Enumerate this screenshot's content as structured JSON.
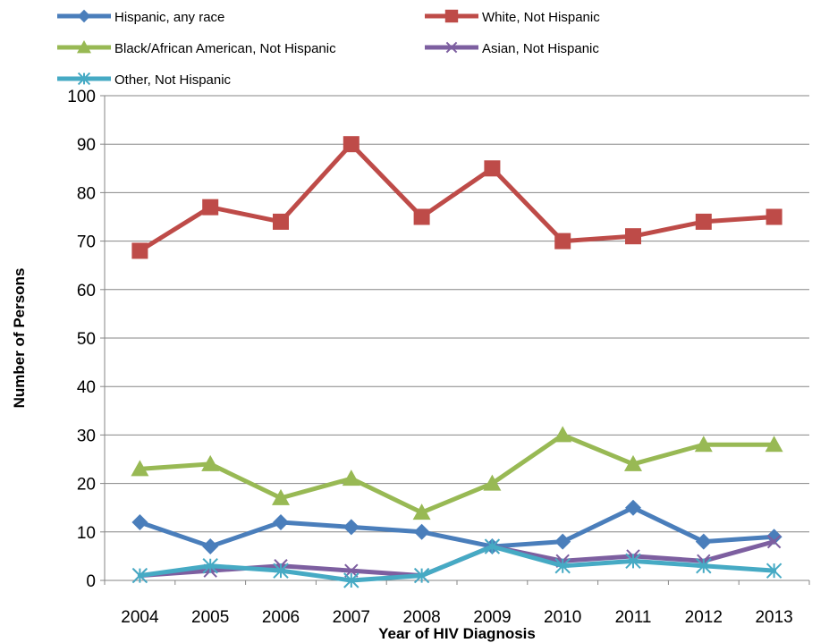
{
  "chart_data": {
    "type": "line",
    "categories": [
      "2004",
      "2005",
      "2006",
      "2007",
      "2008",
      "2009",
      "2010",
      "2011",
      "2012",
      "2013"
    ],
    "series": [
      {
        "name": "Hispanic, any race",
        "color": "#4A7EBB",
        "marker": "diamond",
        "values": [
          12,
          7,
          12,
          11,
          10,
          7,
          8,
          15,
          8,
          9
        ]
      },
      {
        "name": "White, Not Hispanic",
        "color": "#BE4B48",
        "marker": "square",
        "values": [
          68,
          77,
          74,
          90,
          75,
          85,
          70,
          71,
          74,
          75
        ]
      },
      {
        "name": "Black/African American,  Not Hispanic",
        "color": "#98B954",
        "marker": "triangle",
        "values": [
          23,
          24,
          17,
          21,
          14,
          20,
          30,
          24,
          28,
          28
        ]
      },
      {
        "name": "Asian, Not Hispanic",
        "color": "#7D5FA0",
        "marker": "x",
        "values": [
          1,
          2,
          3,
          2,
          1,
          7,
          4,
          5,
          4,
          8
        ]
      },
      {
        "name": "Other, Not Hispanic",
        "color": "#46AAC4",
        "marker": "asterisk",
        "values": [
          1,
          3,
          2,
          0,
          1,
          7,
          3,
          4,
          3,
          2
        ]
      }
    ],
    "xlabel": "Year of HIV Diagnosis",
    "ylabel": "Number of Persons",
    "ylim": [
      0,
      100
    ],
    "yticks": [
      0,
      10,
      20,
      30,
      40,
      50,
      60,
      70,
      80,
      90,
      100
    ],
    "grid": true,
    "legend_position": "top"
  }
}
